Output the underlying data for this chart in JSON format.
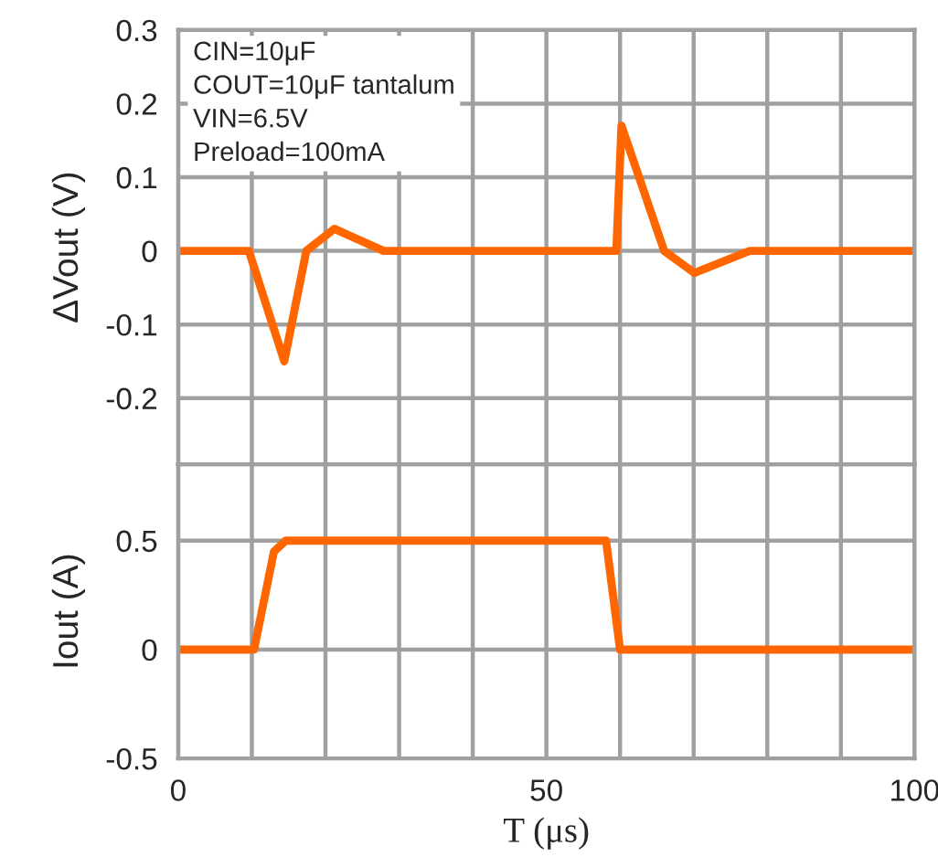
{
  "chart_data": [
    {
      "type": "line",
      "ylabel": "ΔVout (V)",
      "xlim": [
        0,
        100
      ],
      "xticks": [
        0,
        10,
        20,
        30,
        40,
        50,
        60,
        70,
        80,
        90,
        100
      ],
      "ylim": [
        -0.29,
        0.3
      ],
      "yticks": [
        -0.2,
        -0.1,
        0,
        0.1,
        0.2,
        0.3
      ],
      "tick_labels": "y",
      "grid": true,
      "legend": false,
      "annotations": [
        "CIN=10μF\nCOUT=10μF tantalum\nVIN=6.5V\nPreload=100mA"
      ],
      "series": [
        {
          "color": "#ff6600",
          "x": [
            0,
            9.6,
            14.4,
            17.4,
            21.2,
            27.9,
            59.5,
            60.2,
            66,
            70.1,
            77.6,
            100
          ],
          "values": [
            0,
            0,
            -0.15,
            0,
            0.03,
            0,
            0,
            0.17,
            0,
            -0.03,
            0,
            0
          ]
        }
      ]
    },
    {
      "type": "line",
      "xlabel": "T (μs)",
      "ylabel": "Iout (A)",
      "xlim": [
        0,
        100
      ],
      "xticks": [
        0,
        {
          "value": 10,
          "label": null
        },
        {
          "value": 20,
          "label": null
        },
        {
          "value": 30,
          "label": null
        },
        {
          "value": 40,
          "label": null
        },
        50,
        {
          "value": 60,
          "label": null
        },
        {
          "value": 70,
          "label": null
        },
        {
          "value": 80,
          "label": null
        },
        {
          "value": 90,
          "label": null
        },
        100
      ],
      "ylim": [
        -0.5,
        0.85
      ],
      "yticks": [
        -0.5,
        0,
        0.5
      ],
      "grid": true,
      "legend": false,
      "series": [
        {
          "color": "#ff6600",
          "x": [
            0,
            10.3,
            13,
            14.6,
            58.1,
            60,
            100
          ],
          "values": [
            0,
            0,
            0.45,
            0.5,
            0.5,
            0,
            0
          ]
        }
      ]
    }
  ]
}
